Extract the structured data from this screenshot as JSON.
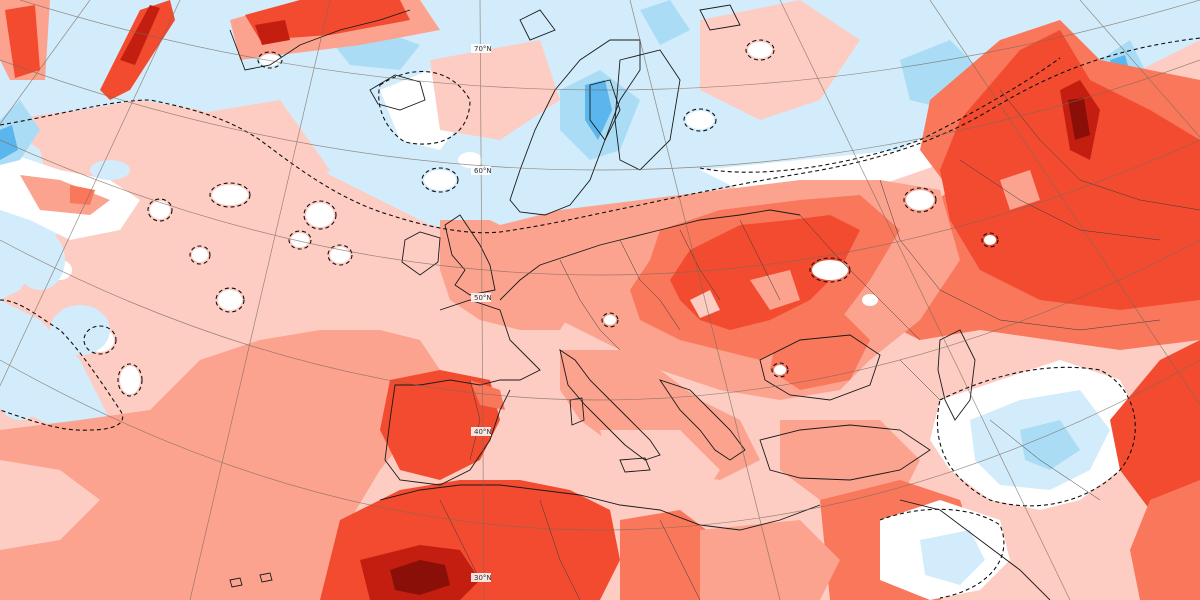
{
  "map": {
    "type": "temperature-anomaly",
    "projection": "polar-stereographic",
    "region": "Europe / North Atlantic",
    "colors": {
      "ocean_base": "#fdcdc3",
      "warm_1": "#fdcdc3",
      "warm_2": "#fba38f",
      "warm_3": "#f9775b",
      "warm_4": "#f24b2f",
      "warm_5": "#c41e10",
      "warm_6": "#8a0f08",
      "neutral": "#ffffff",
      "cool_1": "#d3ecfb",
      "cool_2": "#aadcf6",
      "cool_3": "#5ab6ec",
      "cool_4": "#2c8fd6",
      "coastline": "#1a1a1a",
      "graticule": "#7a6a5a"
    },
    "latitude_labels": [
      "70°N",
      "60°N",
      "50°N",
      "40°N",
      "30°N"
    ]
  }
}
